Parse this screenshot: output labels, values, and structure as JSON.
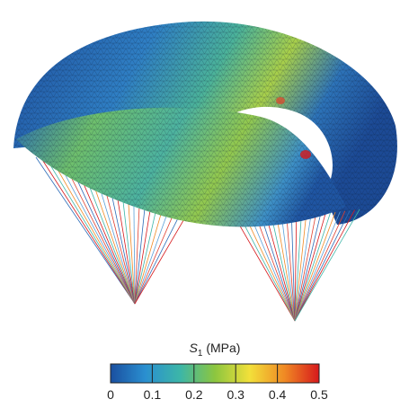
{
  "colorbar": {
    "symbol": "S",
    "subscript": "1",
    "unit": "(MPa)",
    "lim": [
      0,
      0.5
    ],
    "ticks": [
      0,
      0.1,
      0.2,
      0.3,
      0.4,
      0.5
    ],
    "colors": [
      "#1a4fa0",
      "#2a8fd0",
      "#3cb6a8",
      "#8cc63f",
      "#f2e03a",
      "#f08a24",
      "#d7191c"
    ]
  }
}
